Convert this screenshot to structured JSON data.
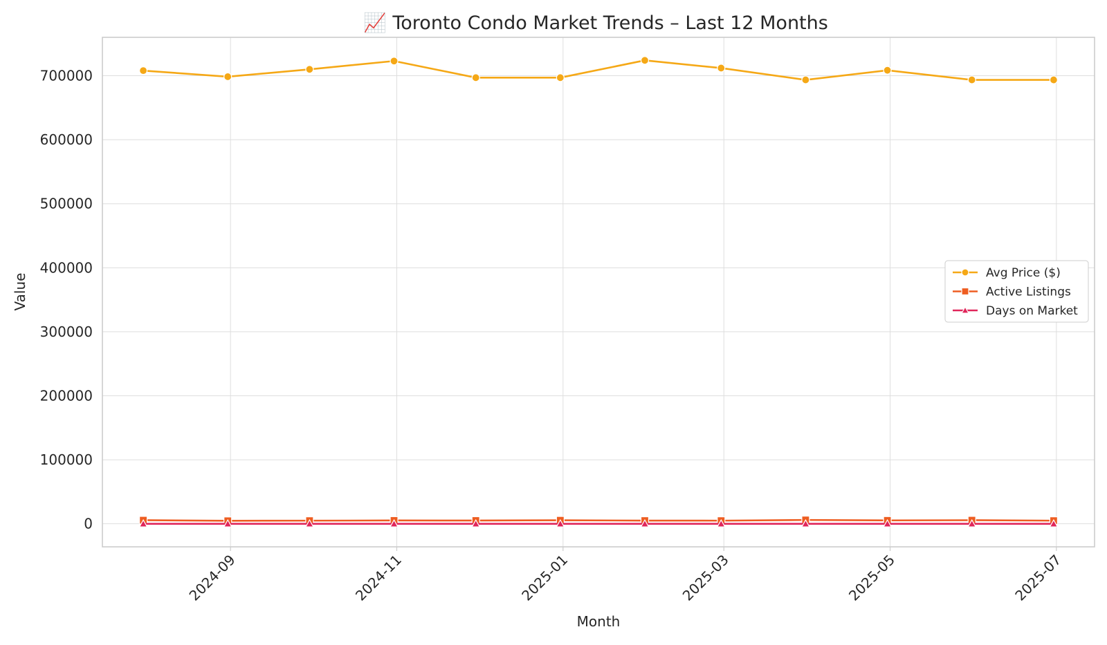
{
  "chart_data": {
    "type": "line",
    "title": "📈 Toronto Condo Market Trends – Last 12 Months",
    "xlabel": "Month",
    "ylabel": "Value",
    "x": [
      "2024-07-31",
      "2024-08-31",
      "2024-09-30",
      "2024-10-31",
      "2024-11-30",
      "2024-12-31",
      "2025-01-31",
      "2025-02-28",
      "2025-03-31",
      "2025-04-30",
      "2025-05-31",
      "2025-06-30"
    ],
    "xticks": [
      "2024-09",
      "2024-11",
      "2025-01",
      "2025-03",
      "2025-05",
      "2025-07"
    ],
    "yticks": [
      "0",
      "100000",
      "200000",
      "300000",
      "400000",
      "500000",
      "600000",
      "700000"
    ],
    "ylim": [
      -36000,
      760000
    ],
    "grid": true,
    "legend": "center-right",
    "series": [
      {
        "name": "Avg Price ($)",
        "color": "#F5A816",
        "marker": "circle",
        "values": [
          708000,
          698500,
          710000,
          723000,
          697000,
          697000,
          724000,
          712000,
          693500,
          708500,
          693500,
          693500
        ]
      },
      {
        "name": "Active Listings",
        "color": "#EE5D21",
        "marker": "square",
        "values": [
          5600,
          4700,
          4900,
          5200,
          5100,
          5500,
          5000,
          4900,
          6000,
          5300,
          5600,
          4900
        ]
      },
      {
        "name": "Days on Market",
        "color": "#E0265A",
        "marker": "triangle",
        "values": [
          22,
          25,
          28,
          24,
          26,
          30,
          27,
          23,
          21,
          25,
          24,
          22
        ]
      }
    ]
  }
}
